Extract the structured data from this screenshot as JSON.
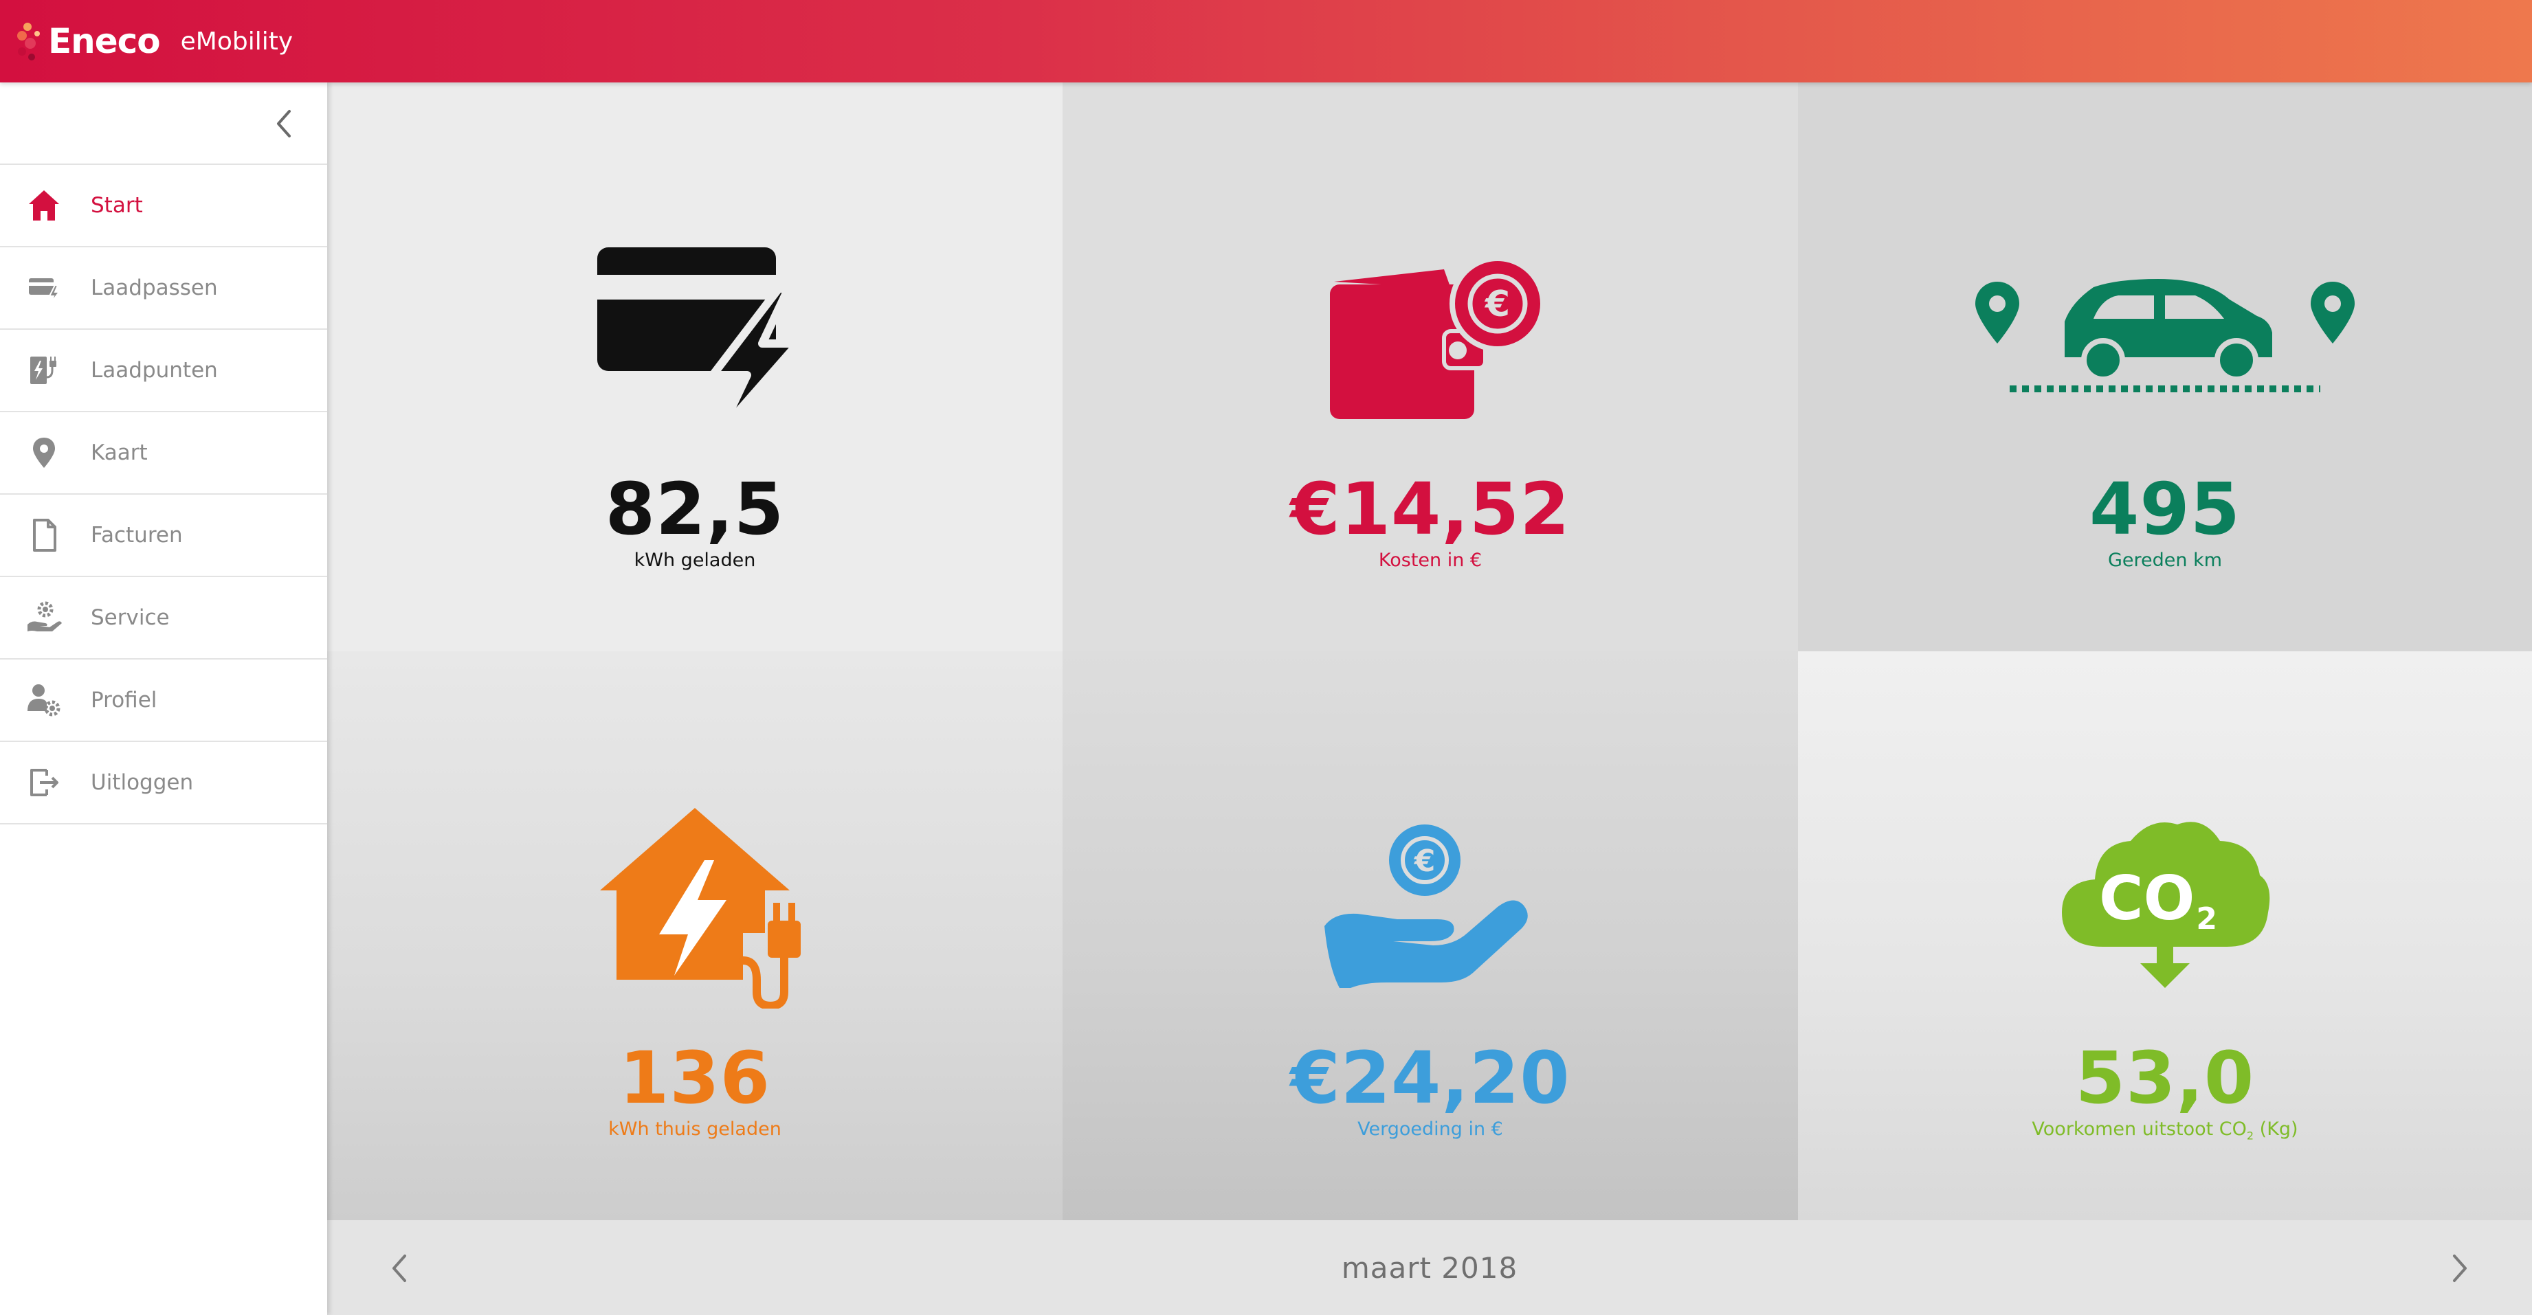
{
  "header": {
    "logo_text": "Eneco",
    "app_name": "eMobility",
    "gradient_start": "#d3103f",
    "gradient_end": "#ee784d"
  },
  "sidebar": {
    "collapse_icon": "chevron-left-icon",
    "items": [
      {
        "label": "Start",
        "icon": "home-icon",
        "active": true
      },
      {
        "label": "Laadpassen",
        "icon": "charge-card-icon",
        "active": false
      },
      {
        "label": "Laadpunten",
        "icon": "charge-point-icon",
        "active": false
      },
      {
        "label": "Kaart",
        "icon": "map-pin-icon",
        "active": false
      },
      {
        "label": "Facturen",
        "icon": "document-icon",
        "active": false
      },
      {
        "label": "Service",
        "icon": "service-hand-gear-icon",
        "active": false
      },
      {
        "label": "Profiel",
        "icon": "profile-gear-icon",
        "active": false
      },
      {
        "label": "Uitloggen",
        "icon": "logout-icon",
        "active": false
      }
    ]
  },
  "stats": [
    {
      "value": "82,5",
      "label": "kWh geladen",
      "icon": "charge-card-lightning-icon",
      "color": "#111111"
    },
    {
      "value": "€14,52",
      "label": "Kosten in €",
      "icon": "wallet-euro-icon",
      "color": "#d3103f"
    },
    {
      "value": "495",
      "label": "Gereden km",
      "icon": "car-route-icon",
      "color": "#0b7f5c"
    },
    {
      "value": "136",
      "label": "kWh thuis geladen",
      "icon": "house-plug-icon",
      "color": "#ee7b18"
    },
    {
      "value": "€24,20",
      "label": "Vergoeding in €",
      "icon": "hand-euro-icon",
      "color": "#3d9edb"
    },
    {
      "value": "53,0",
      "label_main": "Voorkomen uitstoot CO",
      "label_sub": "2",
      "label_tail": " (Kg)",
      "icon": "co2-cloud-icon",
      "icon_text": "CO",
      "icon_sub": "2",
      "color": "#7fbc28"
    }
  ],
  "month_nav": {
    "label": "maart 2018",
    "prev_icon": "chevron-left-icon",
    "next_icon": "chevron-right-icon"
  }
}
